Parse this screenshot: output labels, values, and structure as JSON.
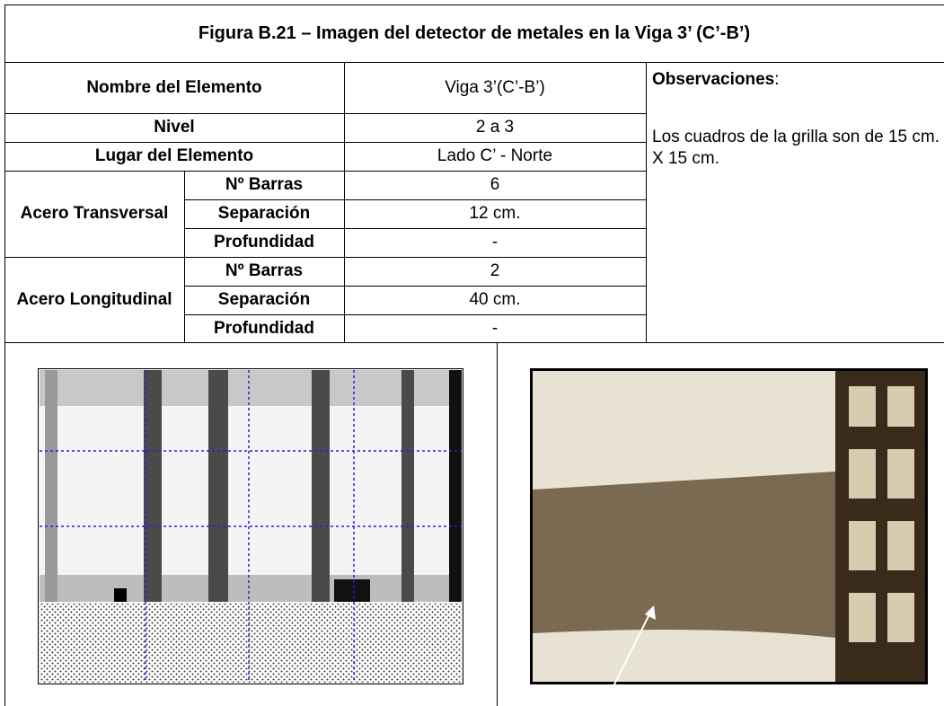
{
  "title": "Figura B.21 – Imagen del detector de metales en la Viga 3’ (C’-B’)",
  "table": {
    "nombre": {
      "label": "Nombre del Elemento",
      "value": "Viga 3’(C’-B’)"
    },
    "nivel": {
      "label": "Nivel",
      "value": "2 a 3"
    },
    "lugar": {
      "label": "Lugar del Elemento",
      "value": "Lado C’ - Norte"
    },
    "groups": [
      {
        "label": "Acero Transversal",
        "rows": [
          [
            "Nº  Barras",
            "6"
          ],
          [
            "Separación",
            "12 cm."
          ],
          [
            "Profundidad",
            "-"
          ]
        ]
      },
      {
        "label": "Acero Longitudinal",
        "rows": [
          [
            "Nº  Barras",
            "2"
          ],
          [
            "Separación",
            "40 cm."
          ],
          [
            "Profundidad",
            "-"
          ]
        ]
      }
    ]
  },
  "observations": {
    "label": "Observaciones",
    "colon": ":",
    "text": "Los cuadros de la grilla son de 15 cm. X 15 cm."
  }
}
